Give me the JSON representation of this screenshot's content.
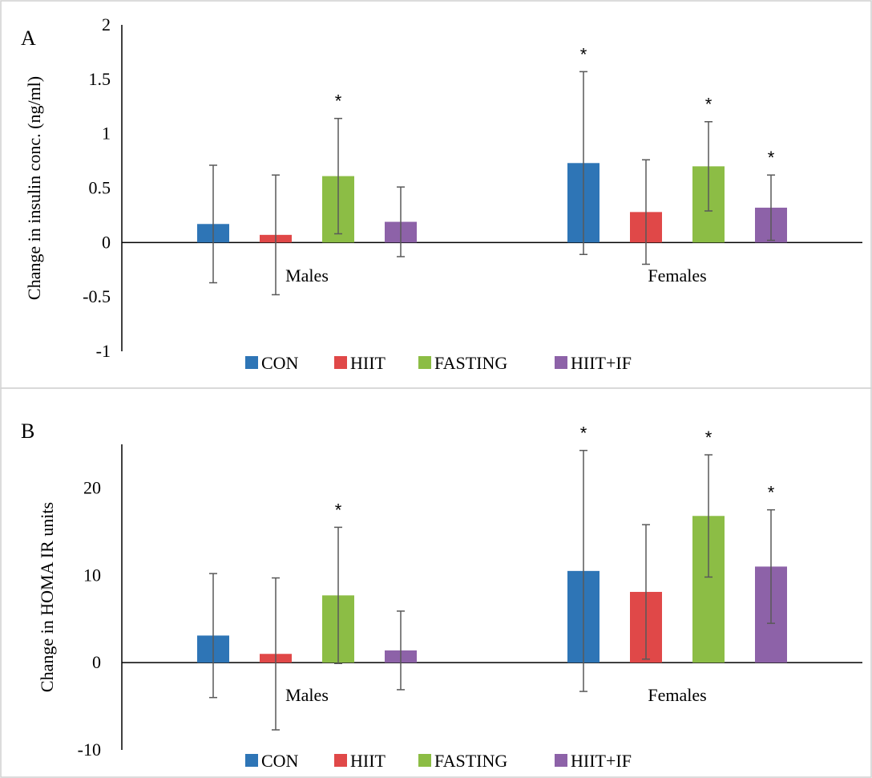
{
  "chart_data": [
    {
      "type": "bar",
      "panel_label": "A",
      "categories": [
        "Males",
        "Females"
      ],
      "series": [
        {
          "name": "CON",
          "color": "#2e75b6",
          "values": [
            0.17,
            0.73
          ],
          "errors": [
            0.54,
            0.84
          ],
          "significant": [
            false,
            true
          ]
        },
        {
          "name": "HIIT",
          "color": "#e04848",
          "values": [
            0.07,
            0.28
          ],
          "errors": [
            0.55,
            0.48
          ],
          "significant": [
            false,
            false
          ]
        },
        {
          "name": "FASTING",
          "color": "#8cbd45",
          "values": [
            0.61,
            0.7
          ],
          "errors": [
            0.53,
            0.41
          ],
          "significant": [
            true,
            true
          ]
        },
        {
          "name": "HIIT+IF",
          "color": "#8d62a8",
          "values": [
            0.19,
            0.32
          ],
          "errors": [
            0.32,
            0.3
          ],
          "significant": [
            false,
            true
          ]
        }
      ],
      "ylabel": "Change in insulin conc. (ng/ml)",
      "ylim": [
        -1,
        2
      ],
      "yticks": [
        2,
        1.5,
        1,
        0.5,
        0,
        -0.5,
        -1
      ],
      "significance_marker": "*",
      "grid": false,
      "legend_position": "bottom"
    },
    {
      "type": "bar",
      "panel_label": "B",
      "categories": [
        "Males",
        "Females"
      ],
      "series": [
        {
          "name": "CON",
          "color": "#2e75b6",
          "values": [
            3.1,
            10.5
          ],
          "errors": [
            7.1,
            13.8
          ],
          "significant": [
            false,
            true
          ]
        },
        {
          "name": "HIIT",
          "color": "#e04848",
          "values": [
            1.0,
            8.1
          ],
          "errors": [
            8.7,
            7.7
          ],
          "significant": [
            false,
            false
          ]
        },
        {
          "name": "FASTING",
          "color": "#8cbd45",
          "values": [
            7.7,
            16.8
          ],
          "errors": [
            7.8,
            7.0
          ],
          "significant": [
            true,
            true
          ]
        },
        {
          "name": "HIIT+IF",
          "color": "#8d62a8",
          "values": [
            1.4,
            11.0
          ],
          "errors": [
            4.5,
            6.5
          ],
          "significant": [
            false,
            true
          ]
        }
      ],
      "ylabel": "Change in HOMA IR units",
      "ylim": [
        -10,
        25
      ],
      "yticks": [
        20,
        10,
        0,
        -10
      ],
      "significance_marker": "*",
      "grid": false,
      "legend_position": "bottom"
    }
  ]
}
